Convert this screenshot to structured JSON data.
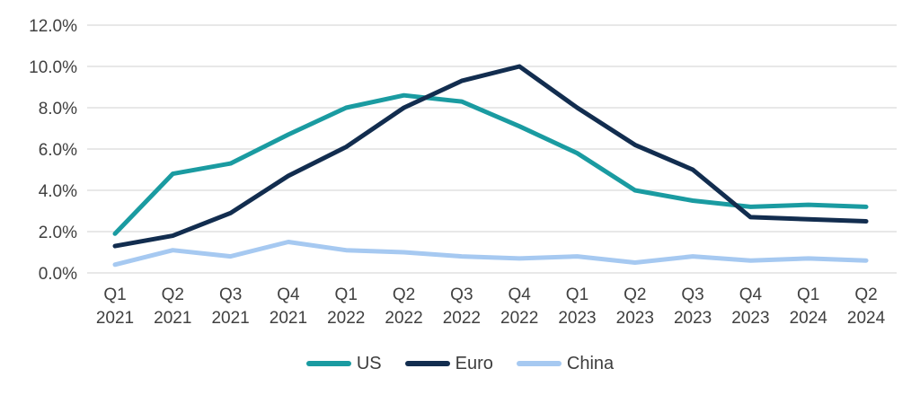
{
  "chart_data": {
    "type": "line",
    "title": "",
    "xlabel": "",
    "ylabel": "",
    "categories": [
      "Q1 2021",
      "Q2 2021",
      "Q3 2021",
      "Q4 2021",
      "Q1 2022",
      "Q2 2022",
      "Q3 2022",
      "Q4 2022",
      "Q1 2023",
      "Q2 2023",
      "Q3 2023",
      "Q4 2023",
      "Q1 2024",
      "Q2 2024"
    ],
    "series": [
      {
        "name": "US",
        "color": "#1A9BA1",
        "values": [
          1.9,
          4.8,
          5.3,
          6.7,
          8.0,
          8.6,
          8.3,
          7.1,
          5.8,
          4.0,
          3.5,
          3.2,
          3.3,
          3.2
        ]
      },
      {
        "name": "Euro",
        "color": "#122D4F",
        "values": [
          1.3,
          1.8,
          2.9,
          4.7,
          6.1,
          8.0,
          9.3,
          10.0,
          8.0,
          6.2,
          5.0,
          2.7,
          2.6,
          2.5
        ]
      },
      {
        "name": "China",
        "color": "#A6C9F1",
        "values": [
          0.4,
          1.1,
          0.8,
          1.5,
          1.1,
          1.0,
          0.8,
          0.7,
          0.8,
          0.5,
          0.8,
          0.6,
          0.7,
          0.6
        ]
      }
    ],
    "ylim": [
      0,
      12
    ],
    "y_tick_step": 2,
    "y_tick_labels": [
      "0.0%",
      "2.0%",
      "4.0%",
      "6.0%",
      "8.0%",
      "10.0%",
      "12.0%"
    ],
    "grid": true,
    "legend_position": "bottom",
    "styles": {
      "gridline_color": "#D9D9D9",
      "axis_text_color": "#404040",
      "line_width": 5,
      "font_size_ticks": 19
    }
  }
}
